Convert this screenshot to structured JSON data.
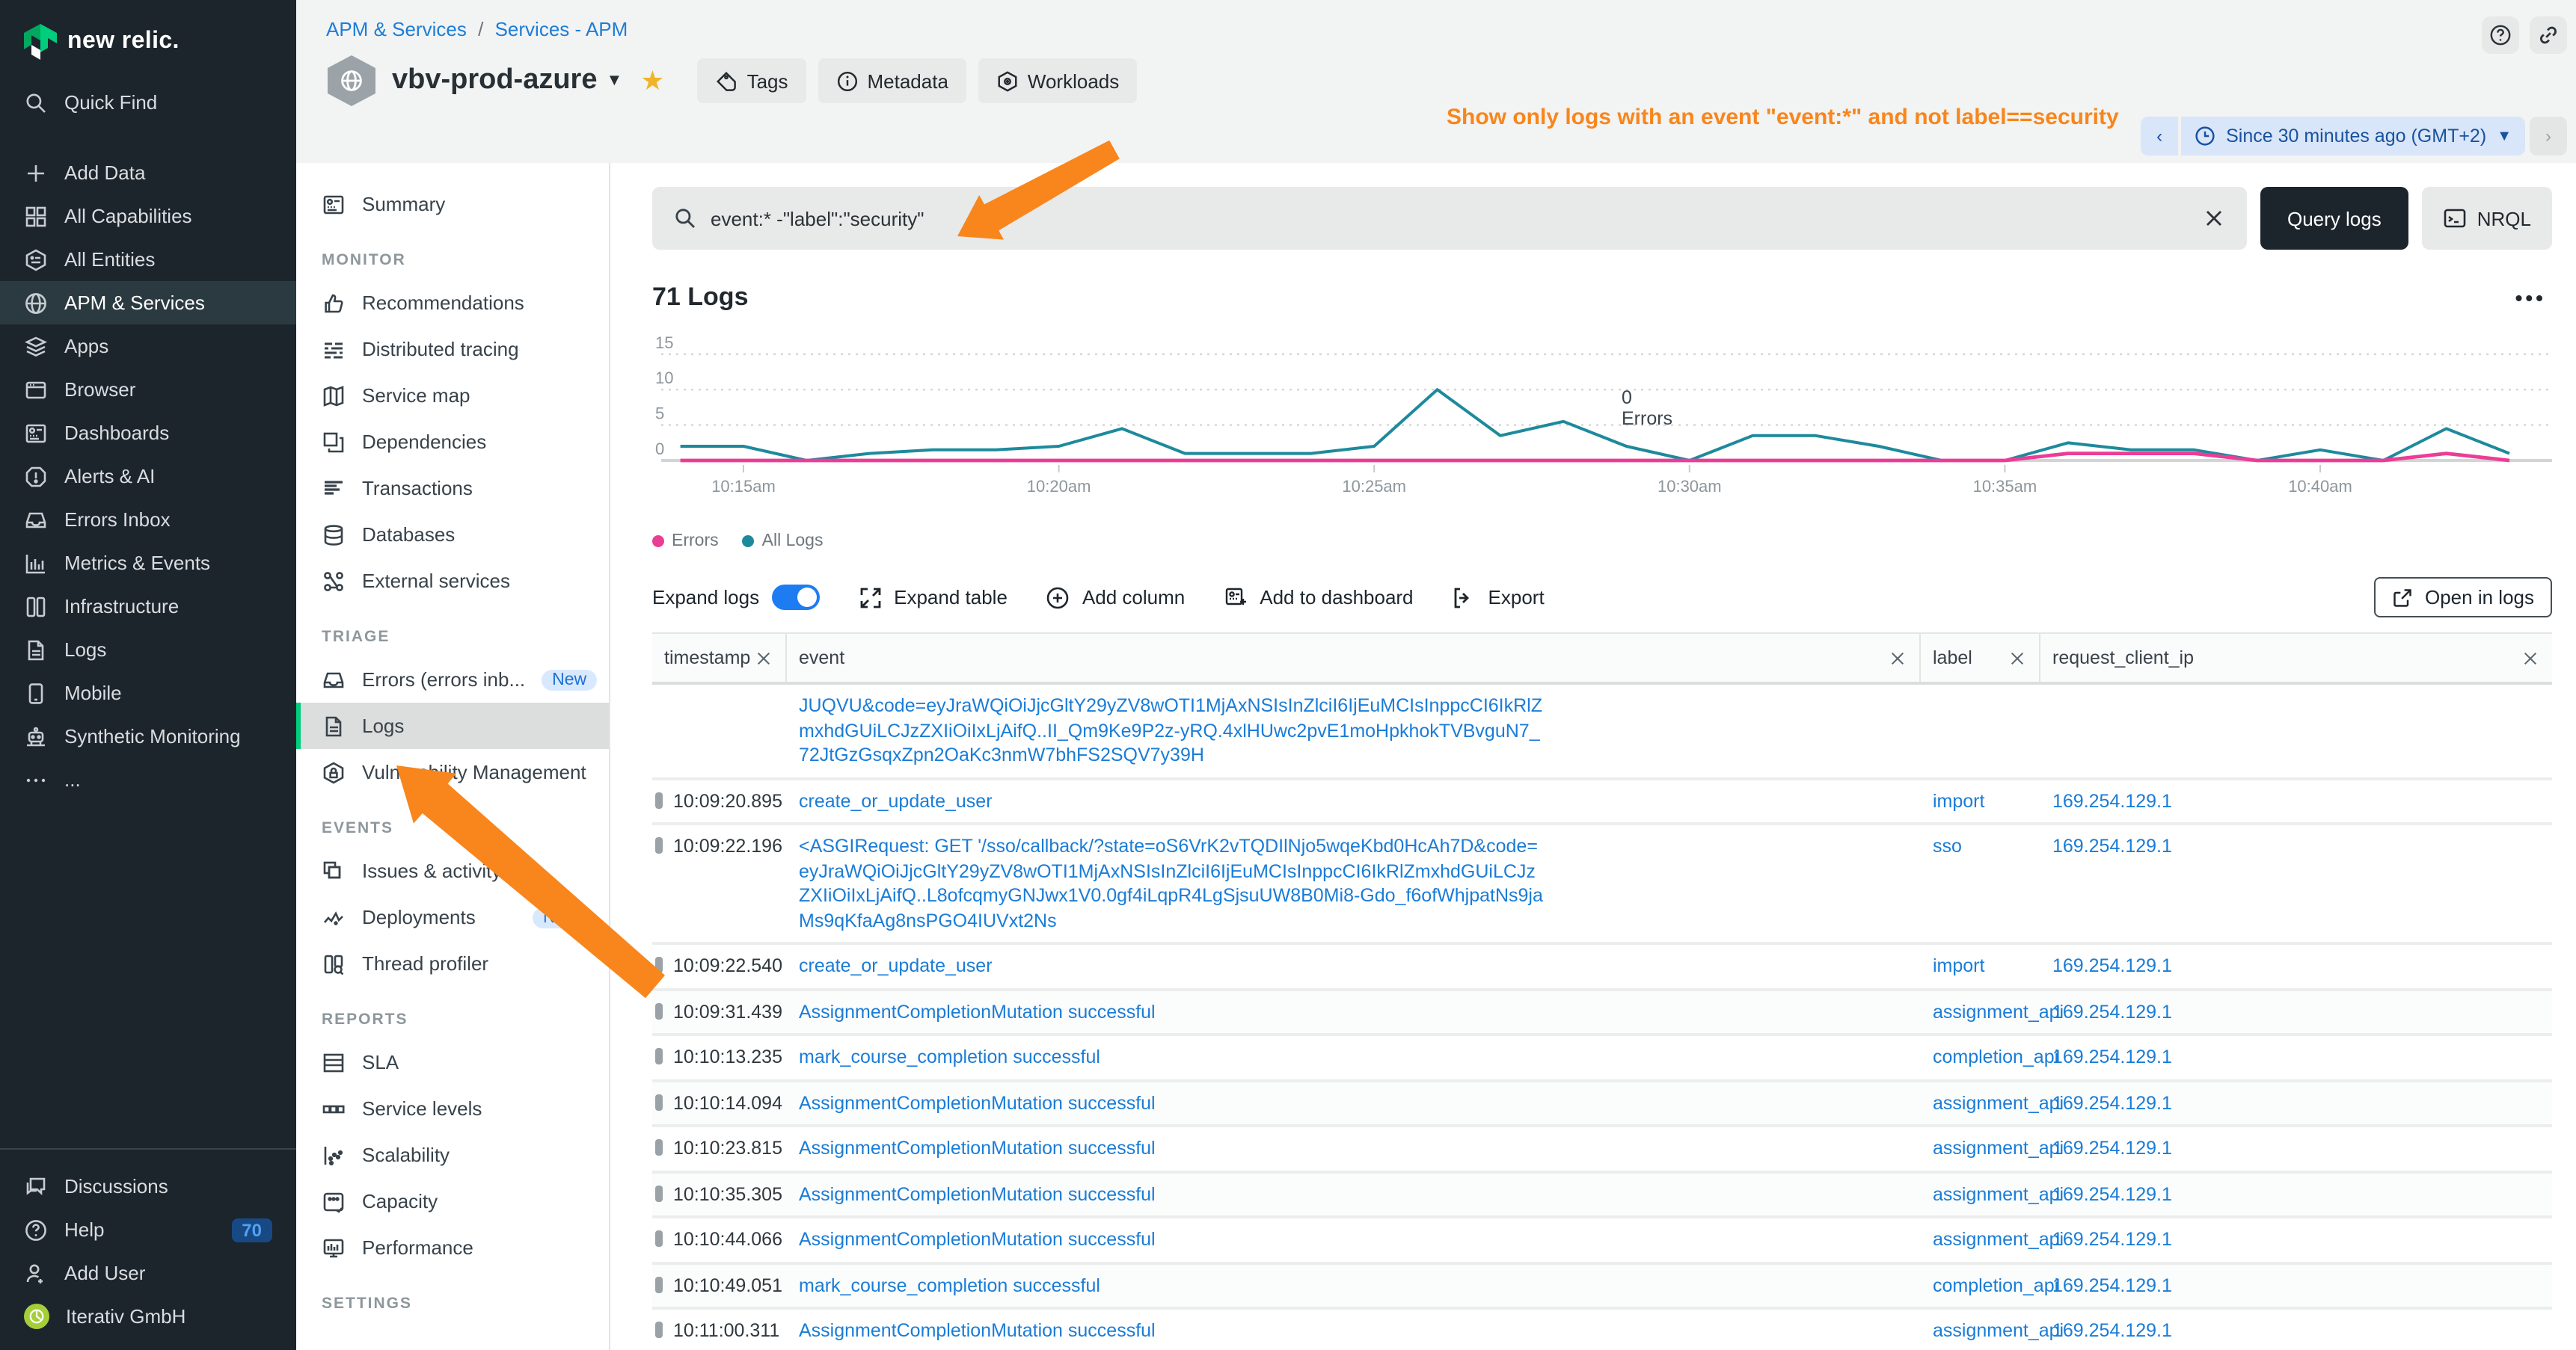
{
  "brand": {
    "logo_text": "new relic."
  },
  "main_nav": {
    "items": [
      {
        "label": "Quick Find",
        "icon": "search",
        "active": false
      },
      {
        "label": "Add Data",
        "icon": "plus",
        "active": false
      },
      {
        "label": "All Capabilities",
        "icon": "grid",
        "active": false
      },
      {
        "label": "All Entities",
        "icon": "entity",
        "active": false
      },
      {
        "label": "APM & Services",
        "icon": "globe",
        "active": true
      },
      {
        "label": "Apps",
        "icon": "layers",
        "active": false
      },
      {
        "label": "Browser",
        "icon": "browser",
        "active": false
      },
      {
        "label": "Dashboards",
        "icon": "dashboard",
        "active": false
      },
      {
        "label": "Alerts & AI",
        "icon": "alert",
        "active": false
      },
      {
        "label": "Errors Inbox",
        "icon": "inbox",
        "active": false
      },
      {
        "label": "Metrics & Events",
        "icon": "metrics",
        "active": false
      },
      {
        "label": "Infrastructure",
        "icon": "infra",
        "active": false
      },
      {
        "label": "Logs",
        "icon": "filetext",
        "active": false
      },
      {
        "label": "Mobile",
        "icon": "mobile",
        "active": false
      },
      {
        "label": "Synthetic Monitoring",
        "icon": "robot",
        "active": false
      },
      {
        "label": "...",
        "icon": "ellipsis",
        "active": false
      }
    ],
    "footer_items": [
      {
        "label": "Discussions",
        "icon": "chat"
      },
      {
        "label": "Help",
        "icon": "help",
        "badge": "70"
      },
      {
        "label": "Add User",
        "icon": "userplus"
      },
      {
        "label": "Iterativ GmbH",
        "icon": "avatar"
      }
    ]
  },
  "sub_nav": {
    "sections": [
      {
        "header": "",
        "items": [
          {
            "label": "Summary",
            "icon": "dashboard"
          }
        ]
      },
      {
        "header": "MONITOR",
        "items": [
          {
            "label": "Recommendations",
            "icon": "thumbsup"
          },
          {
            "label": "Distributed tracing",
            "icon": "tracing"
          },
          {
            "label": "Service map",
            "icon": "map"
          },
          {
            "label": "Dependencies",
            "icon": "deps"
          },
          {
            "label": "Transactions",
            "icon": "transactions"
          },
          {
            "label": "Databases",
            "icon": "database"
          },
          {
            "label": "External services",
            "icon": "network"
          }
        ]
      },
      {
        "header": "TRIAGE",
        "items": [
          {
            "label": "Errors (errors inb...",
            "icon": "inbox",
            "badge": "New"
          },
          {
            "label": "Logs",
            "icon": "filetext",
            "active": true
          },
          {
            "label": "Vulnerability Management",
            "icon": "shield"
          }
        ]
      },
      {
        "header": "EVENTS",
        "items": [
          {
            "label": "Issues & activity",
            "icon": "windows"
          },
          {
            "label": "Deployments",
            "icon": "pulse",
            "badge": "New"
          },
          {
            "label": "Thread profiler",
            "icon": "thread"
          }
        ]
      },
      {
        "header": "REPORTS",
        "items": [
          {
            "label": "SLA",
            "icon": "sla"
          },
          {
            "label": "Service levels",
            "icon": "levels"
          },
          {
            "label": "Scalability",
            "icon": "scatter"
          },
          {
            "label": "Capacity",
            "icon": "capacity"
          },
          {
            "label": "Performance",
            "icon": "perf"
          }
        ]
      },
      {
        "header": "SETTINGS",
        "items": []
      }
    ]
  },
  "header": {
    "breadcrumb": [
      "APM & Services",
      "Services - APM"
    ],
    "breadcrumb_separator": "/",
    "entity_title": "vbv-prod-azure",
    "actions": [
      {
        "label": "Tags",
        "icon": "tag"
      },
      {
        "label": "Metadata",
        "icon": "info"
      },
      {
        "label": "Workloads",
        "icon": "workload"
      }
    ],
    "annotation_text": "Show only logs with an event \"event:*\" and not label==security",
    "time_picker": "Since 30 minutes ago (GMT+2)"
  },
  "search": {
    "query": "event:* -\"label\":\"security\"",
    "query_button": "Query logs",
    "nrql_button": "NRQL"
  },
  "logs_section": {
    "title": "71 Logs",
    "chart_annotation_value": "0",
    "chart_annotation_label": "Errors",
    "legend": [
      {
        "label": "Errors",
        "color": "#ec3d96"
      },
      {
        "label": "All Logs",
        "color": "#1d8a9c"
      }
    ]
  },
  "chart_data": {
    "type": "line",
    "title": "71 Logs",
    "x": [
      "10:14",
      "10:15",
      "10:16",
      "10:17",
      "10:18",
      "10:19",
      "10:20",
      "10:21",
      "10:22",
      "10:23",
      "10:24",
      "10:25",
      "10:26",
      "10:27",
      "10:28",
      "10:29",
      "10:30",
      "10:31",
      "10:32",
      "10:33",
      "10:34",
      "10:35",
      "10:36",
      "10:37",
      "10:38",
      "10:39",
      "10:40",
      "10:41",
      "10:42",
      "10:43"
    ],
    "series": [
      {
        "name": "All Logs",
        "color": "#1d8a9c",
        "values": [
          2,
          2,
          0,
          1,
          1.5,
          1.5,
          2,
          4.5,
          1,
          1,
          1,
          2,
          10,
          3.5,
          5.5,
          2,
          0,
          3.5,
          3.5,
          2,
          0,
          0,
          2.5,
          1.5,
          1.5,
          0,
          1.5,
          0,
          4.5,
          1
        ]
      },
      {
        "name": "Errors",
        "color": "#ec3d96",
        "values": [
          0,
          0,
          0,
          0,
          0,
          0,
          0,
          0,
          0,
          0,
          0,
          0,
          0,
          0,
          0,
          0,
          0,
          0,
          0,
          0,
          0,
          0,
          1,
          1,
          1,
          0,
          0,
          0,
          1,
          0
        ]
      }
    ],
    "ylim": [
      0,
      17
    ],
    "yticks": [
      0,
      5,
      10,
      15
    ],
    "x_tick_labels": [
      "10:15am",
      "10:20am",
      "10:25am",
      "10:30am",
      "10:35am",
      "10:40am"
    ],
    "x_tick_indices": [
      1,
      6,
      11,
      16,
      21,
      26
    ],
    "grid": "dotted-horizontal",
    "legend_position": "bottom-left"
  },
  "toolbar": {
    "expand_logs_label": "Expand logs",
    "expand_logs_on": true,
    "expand_table_label": "Expand table",
    "add_column_label": "Add column",
    "add_dashboard_label": "Add to dashboard",
    "export_label": "Export",
    "open_in_logs_label": "Open in logs"
  },
  "table": {
    "columns": [
      "timestamp",
      "event",
      "label",
      "request_client_ip"
    ],
    "rows": [
      {
        "timestamp": "",
        "event": "JUQVU&code=eyJraWQiOiJjcGltY29yZV8wOTI1MjAxNSIsInZlciI6IjEuMCIsInppcCI6IkRlZmxhdGUiLCJzZXIiOiIxLjAifQ..II_Qm9Ke9P2z-yRQ.4xlHUwc2pvE1moHpkhokTVBvguN7_72JtGzGsqxZpn2OaKc3nmW7bhFS2SQV7y39H",
        "label": "",
        "ip": ""
      },
      {
        "timestamp": "10:09:20.895",
        "event": "create_or_update_user",
        "label": "import",
        "ip": "169.254.129.1"
      },
      {
        "timestamp": "10:09:22.196",
        "event": "<ASGIRequest: GET '/sso/callback/?state=oS6VrK2vTQDIlNjo5wqeKbd0HcAh7D&code=eyJraWQiOiJjcGltY29yZV8wOTI1MjAxNSIsInZlciI6IjEuMCIsInppcCI6IkRlZmxhdGUiLCJzZXIiOiIxLjAifQ..L8ofcqmyGNJwx1V0.0gf4iLqpR4LgSjsuUW8B0Mi8-Gdo_f6ofWhjpatNs9jaMs9qKfaAg8nsPGO4IUVxt2Ns",
        "label": "sso",
        "ip": "169.254.129.1"
      },
      {
        "timestamp": "10:09:22.540",
        "event": "create_or_update_user",
        "label": "import",
        "ip": "169.254.129.1"
      },
      {
        "timestamp": "10:09:31.439",
        "event": "AssignmentCompletionMutation successful",
        "label": "assignment_api",
        "ip": "169.254.129.1"
      },
      {
        "timestamp": "10:10:13.235",
        "event": "mark_course_completion successful",
        "label": "completion_api",
        "ip": "169.254.129.1"
      },
      {
        "timestamp": "10:10:14.094",
        "event": "AssignmentCompletionMutation successful",
        "label": "assignment_api",
        "ip": "169.254.129.1"
      },
      {
        "timestamp": "10:10:23.815",
        "event": "AssignmentCompletionMutation successful",
        "label": "assignment_api",
        "ip": "169.254.129.1"
      },
      {
        "timestamp": "10:10:35.305",
        "event": "AssignmentCompletionMutation successful",
        "label": "assignment_api",
        "ip": "169.254.129.1"
      },
      {
        "timestamp": "10:10:44.066",
        "event": "AssignmentCompletionMutation successful",
        "label": "assignment_api",
        "ip": "169.254.129.1"
      },
      {
        "timestamp": "10:10:49.051",
        "event": "mark_course_completion successful",
        "label": "completion_api",
        "ip": "169.254.129.1"
      },
      {
        "timestamp": "10:11:00.311",
        "event": "AssignmentCompletionMutation successful",
        "label": "assignment_api",
        "ip": "169.254.129.1"
      }
    ]
  },
  "colors": {
    "accent_green": "#00ce7c",
    "link_blue": "#1a7cd7",
    "annotation_orange": "#f8861c",
    "errors_pink": "#ec3d96",
    "all_logs_teal": "#1d8a9c",
    "nav_dark": "#1d252c"
  }
}
